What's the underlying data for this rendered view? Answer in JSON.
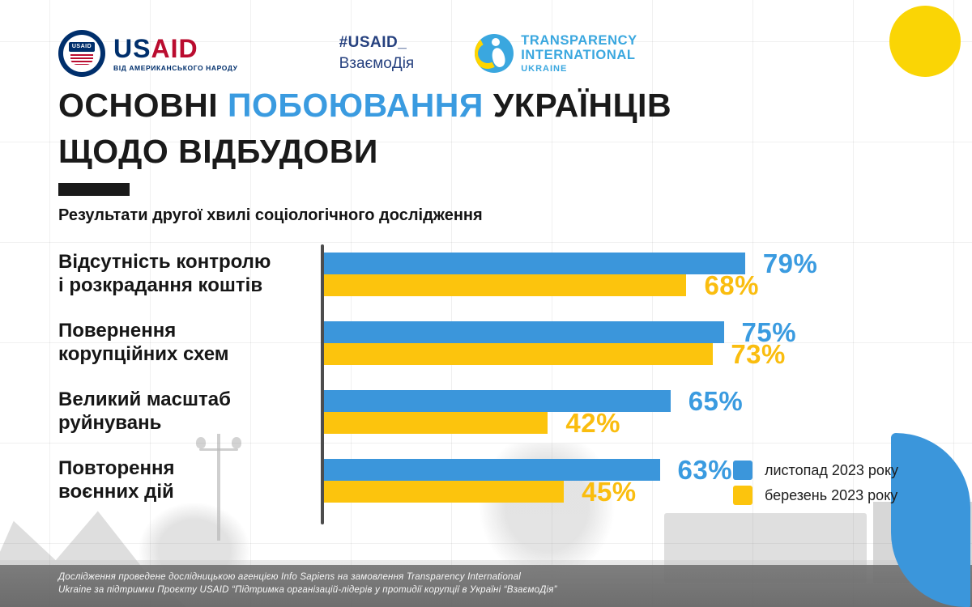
{
  "header": {
    "usaid": {
      "seal_text": "USAID",
      "wordmark_us": "US",
      "wordmark_aid": "AID",
      "tagline": "ВІД АМЕРИКАНСЬКОГО НАРОДУ"
    },
    "hashtag": {
      "line1": "#USAID_",
      "line2": "ВзаємоДія"
    },
    "transparency": {
      "line1": "TRANSPARENCY",
      "line2": "INTERNATIONAL",
      "line3": "UKRAINE"
    }
  },
  "title": {
    "line1_part1": "ОСНОВНІ",
    "line1_highlight": "ПОБОЮВАННЯ",
    "line1_part2": "УКРАЇНЦІВ",
    "line2": "ЩОДО ВІДБУДОВИ"
  },
  "subtitle": "Результати другої хвилі соціологічного дослідження",
  "chart_data": {
    "type": "bar",
    "orientation": "horizontal",
    "unit": "%",
    "xlim": [
      0,
      100
    ],
    "grid": true,
    "legend_position": "bottom-right",
    "categories": [
      "Відсутність контролю і розкрадання коштів",
      "Повернення корупційних схем",
      "Великий масштаб руйнувань",
      "Повторення воєнних дій"
    ],
    "categories_lines": [
      [
        "Відсутність контролю",
        "і розкрадання коштів"
      ],
      [
        "Повернення",
        "корупційних схем"
      ],
      [
        "Великий масштаб",
        "руйнувань"
      ],
      [
        "Повторення",
        "воєнних дій"
      ]
    ],
    "series": [
      {
        "name": "листопад 2023 року",
        "color": "#3b96db",
        "values": [
          79,
          75,
          65,
          63
        ]
      },
      {
        "name": "березень 2023 року",
        "color": "#fcc40d",
        "values": [
          68,
          73,
          42,
          45
        ]
      }
    ]
  },
  "footer": {
    "line1": "Дослідження проведене дослідницькою агенцією Info Sapiens на замовлення Transparency International",
    "line2": "Ukraine за підтримки Проєкту USAID “Підтримка організацій-лідерів у протидії корупції в Україні “ВзаємоДія”"
  },
  "colors": {
    "blue": "#3b96db",
    "yellow": "#fcc40d",
    "circle_yellow": "#fad505",
    "title_highlight": "#3a9be0",
    "usaid_navy": "#002f6c",
    "usaid_red": "#ba0c2f",
    "ti_blue": "#3aa7df",
    "text_dark": "#1a1a1a",
    "axis": "#4d4d4d"
  }
}
